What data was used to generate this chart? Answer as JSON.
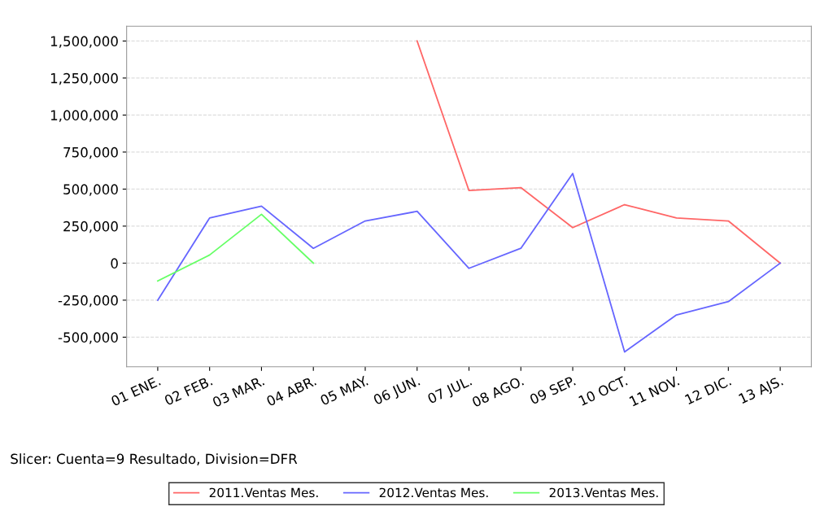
{
  "chart_data": {
    "type": "line",
    "categories": [
      "01 ENE.",
      "02 FEB.",
      "03 MAR.",
      "04 ABR.",
      "05 MAY.",
      "06 JUN.",
      "07 JUL.",
      "08 AGO.",
      "09 SEP.",
      "10 OCT.",
      "11 NOV.",
      "12 DIC.",
      "13 AJS."
    ],
    "series": [
      {
        "name": "2011.Ventas Mes.",
        "color": "#ff6666",
        "values": [
          null,
          null,
          null,
          null,
          null,
          1500000,
          490000,
          510000,
          240000,
          395000,
          305000,
          285000,
          0
        ]
      },
      {
        "name": "2012.Ventas Mes.",
        "color": "#6666ff",
        "values": [
          -250000,
          305000,
          385000,
          100000,
          285000,
          350000,
          -35000,
          100000,
          605000,
          -600000,
          -350000,
          -260000,
          0
        ]
      },
      {
        "name": "2013.Ventas Mes.",
        "color": "#66ff66",
        "values": [
          -120000,
          55000,
          330000,
          0,
          null,
          null,
          null,
          null,
          null,
          null,
          null,
          null,
          null
        ]
      }
    ],
    "ylim": [
      -700000,
      1600000
    ],
    "yticks": [
      {
        "value": -500000,
        "label": "-500,000"
      },
      {
        "value": -250000,
        "label": "-250,000"
      },
      {
        "value": 0,
        "label": "0"
      },
      {
        "value": 250000,
        "label": "250,000"
      },
      {
        "value": 500000,
        "label": "500,000"
      },
      {
        "value": 750000,
        "label": "750,000"
      },
      {
        "value": 1000000,
        "label": "1,000,000"
      },
      {
        "value": 1250000,
        "label": "1,250,000"
      },
      {
        "value": 1500000,
        "label": "1,500,000"
      }
    ],
    "grid": "y",
    "legend": "bottom",
    "marker": "none",
    "line_style": "solid",
    "annotations": [
      "Slicer: Cuenta=9 Resultado, Division=DFR"
    ]
  }
}
